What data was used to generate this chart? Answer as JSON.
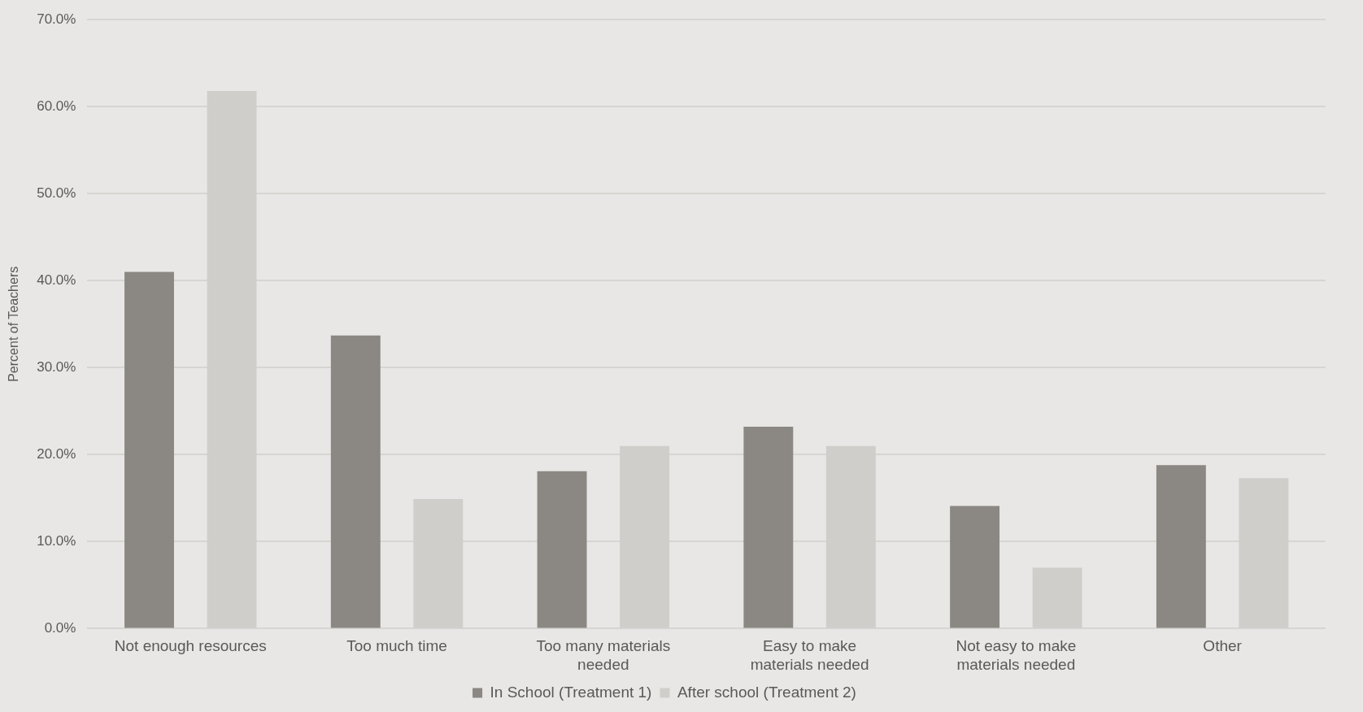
{
  "chart_data": {
    "type": "bar",
    "ylabel": "Percent of Teachers",
    "categories": [
      "Not enough resources",
      "Too much time",
      "Too many materials needed",
      "Easy to make materials needed",
      "Not easy to make materials needed",
      "Other"
    ],
    "series": [
      {
        "name": "In School (Treatment 1)",
        "color": "#8b8883",
        "values": [
          41.0,
          33.7,
          18.1,
          23.2,
          14.1,
          18.8
        ]
      },
      {
        "name": "After school (Treatment 2)",
        "color": "#cfcecb",
        "values": [
          61.8,
          14.9,
          21.0,
          21.0,
          7.0,
          17.3
        ]
      }
    ],
    "ylim": [
      0,
      70
    ],
    "yticks": [
      {
        "value": 0,
        "label": "0.0%"
      },
      {
        "value": 10,
        "label": "10.0%"
      },
      {
        "value": 20,
        "label": "20.0%"
      },
      {
        "value": 30,
        "label": "30.0%"
      },
      {
        "value": 40,
        "label": "40.0%"
      },
      {
        "value": 50,
        "label": "50.0%"
      },
      {
        "value": 60,
        "label": "60.0%"
      },
      {
        "value": 70,
        "label": "70.0%"
      }
    ],
    "grid": "y",
    "legend": "bottom"
  }
}
